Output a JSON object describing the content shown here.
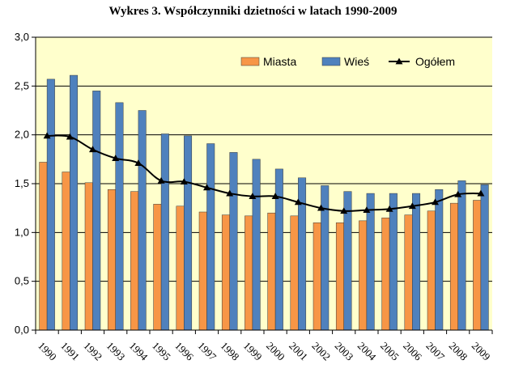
{
  "chart_data": {
    "type": "bar",
    "title": "Wykres 3. Współczynniki dzietności w latach 1990-2009",
    "categories": [
      "1990",
      "1991",
      "1992",
      "1993",
      "1994",
      "1995",
      "1996",
      "1997",
      "1998",
      "1999",
      "2000",
      "2001",
      "2002",
      "2003",
      "2004",
      "2005",
      "2006",
      "2007",
      "2008",
      "2009"
    ],
    "series": [
      {
        "name": "Miasta",
        "kind": "bar",
        "color": "#F79646",
        "values": [
          1.72,
          1.62,
          1.51,
          1.44,
          1.42,
          1.29,
          1.27,
          1.21,
          1.18,
          1.17,
          1.2,
          1.17,
          1.1,
          1.1,
          1.12,
          1.15,
          1.18,
          1.22,
          1.3,
          1.33
        ]
      },
      {
        "name": "Wieś",
        "kind": "bar",
        "color": "#4F81BD",
        "values": [
          2.57,
          2.61,
          2.45,
          2.33,
          2.25,
          2.01,
          1.99,
          1.91,
          1.82,
          1.75,
          1.65,
          1.56,
          1.48,
          1.42,
          1.4,
          1.4,
          1.4,
          1.44,
          1.53,
          1.49
        ]
      },
      {
        "name": "Ogółem",
        "kind": "line",
        "color": "#000000",
        "values": [
          1.99,
          1.98,
          1.85,
          1.76,
          1.71,
          1.53,
          1.52,
          1.46,
          1.4,
          1.37,
          1.37,
          1.31,
          1.25,
          1.22,
          1.23,
          1.24,
          1.27,
          1.31,
          1.39,
          1.4
        ]
      }
    ],
    "yticks": [
      "0,0",
      "0,5",
      "1,0",
      "1,5",
      "2,0",
      "2,5",
      "3,0"
    ],
    "ylim": [
      0,
      3.0
    ],
    "ystep": 0.5,
    "grid": true,
    "legend": "top-right",
    "plot_background": "#FFFFCC"
  }
}
